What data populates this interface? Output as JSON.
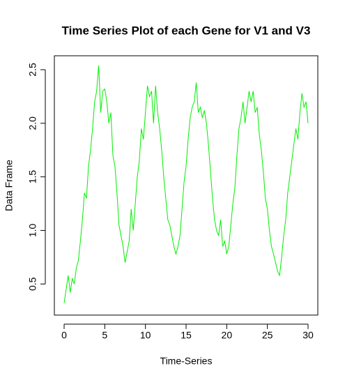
{
  "chart_data": {
    "type": "line",
    "title": "Time Series Plot of each Gene for V1 and V3",
    "xlabel": "Time-Series",
    "ylabel": "Data Frame",
    "x": [
      0,
      0.25,
      0.5,
      0.75,
      1,
      1.25,
      1.5,
      1.75,
      2,
      2.25,
      2.5,
      2.75,
      3,
      3.25,
      3.5,
      3.75,
      4,
      4.25,
      4.5,
      4.75,
      5,
      5.25,
      5.5,
      5.75,
      6,
      6.25,
      6.5,
      6.75,
      7,
      7.25,
      7.5,
      7.75,
      8,
      8.25,
      8.5,
      8.75,
      9,
      9.25,
      9.5,
      9.75,
      10,
      10.25,
      10.5,
      10.75,
      11,
      11.25,
      11.5,
      11.75,
      12,
      12.25,
      12.5,
      12.75,
      13,
      13.25,
      13.5,
      13.75,
      14,
      14.25,
      14.5,
      14.75,
      15,
      15.25,
      15.5,
      15.75,
      16,
      16.25,
      16.5,
      16.75,
      17,
      17.25,
      17.5,
      17.75,
      18,
      18.25,
      18.5,
      18.75,
      19,
      19.25,
      19.5,
      19.75,
      20,
      20.25,
      20.5,
      20.75,
      21,
      21.25,
      21.5,
      21.75,
      22,
      22.25,
      22.5,
      22.75,
      23,
      23.25,
      23.5,
      23.75,
      24,
      24.25,
      24.5,
      24.75,
      25,
      25.25,
      25.5,
      25.75,
      26,
      26.25,
      26.5,
      26.75,
      27,
      27.25,
      27.5,
      27.75,
      28,
      28.25,
      28.5,
      28.75,
      29,
      29.25,
      29.5,
      29.75,
      30
    ],
    "series": [
      {
        "color": "#00ee00",
        "values": [
          0.32,
          0.45,
          0.58,
          0.42,
          0.55,
          0.5,
          0.65,
          0.72,
          0.9,
          1.1,
          1.35,
          1.3,
          1.6,
          1.75,
          1.95,
          2.2,
          2.3,
          2.54,
          2.1,
          2.3,
          2.32,
          2.2,
          2.0,
          2.1,
          1.7,
          1.6,
          1.35,
          1.05,
          0.95,
          0.85,
          0.7,
          0.8,
          0.9,
          1.2,
          1.0,
          1.25,
          1.5,
          1.65,
          1.95,
          1.85,
          2.1,
          2.35,
          2.25,
          2.3,
          2.0,
          2.35,
          2.1,
          1.95,
          1.75,
          1.5,
          1.3,
          1.1,
          1.05,
          0.95,
          0.85,
          0.78,
          0.85,
          0.95,
          1.2,
          1.45,
          1.6,
          1.85,
          2.05,
          2.15,
          2.2,
          2.38,
          2.1,
          2.15,
          2.05,
          2.12,
          2.0,
          1.8,
          1.55,
          1.3,
          1.1,
          1.0,
          0.95,
          1.1,
          0.85,
          0.9,
          0.78,
          0.85,
          1.05,
          1.25,
          1.4,
          1.7,
          1.95,
          2.05,
          2.2,
          2.0,
          2.15,
          2.3,
          2.2,
          2.3,
          2.1,
          2.15,
          1.9,
          1.75,
          1.55,
          1.3,
          1.2,
          1.0,
          0.85,
          0.78,
          0.7,
          0.62,
          0.58,
          0.75,
          0.95,
          1.1,
          1.35,
          1.5,
          1.65,
          1.8,
          1.95,
          1.85,
          2.1,
          2.28,
          2.15,
          2.2,
          2.0
        ]
      }
    ],
    "xlim": [
      -1.2,
      31.2
    ],
    "xticks": [
      0,
      5,
      10,
      15,
      20,
      25,
      30
    ],
    "ylim": [
      0.21,
      2.63
    ],
    "yticks": [
      0.5,
      {
        "value": 1,
        "label": "1.0"
      },
      1.5,
      {
        "value": 2,
        "label": "2.0"
      },
      2.5
    ]
  }
}
